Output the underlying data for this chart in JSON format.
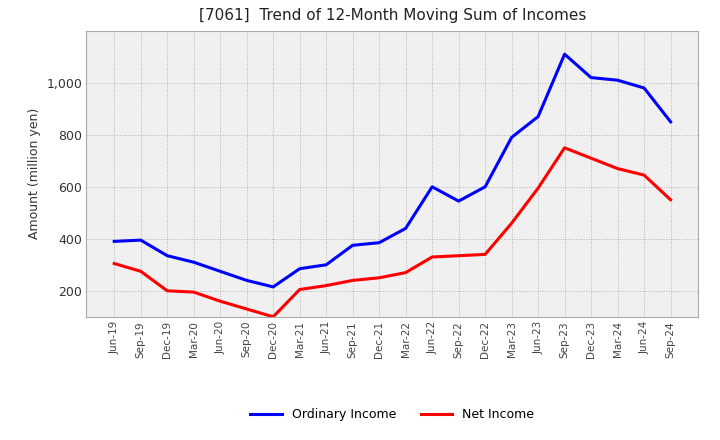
{
  "title": "[7061]  Trend of 12-Month Moving Sum of Incomes",
  "ylabel": "Amount (million yen)",
  "background_color": "#ffffff",
  "plot_bg_color": "#f0f0f0",
  "grid_color": "#aaaaaa",
  "ordinary_income_color": "#0000ff",
  "net_income_color": "#ff0000",
  "x_labels": [
    "Jun-19",
    "Sep-19",
    "Dec-19",
    "Mar-20",
    "Jun-20",
    "Sep-20",
    "Dec-20",
    "Mar-21",
    "Jun-21",
    "Sep-21",
    "Dec-21",
    "Mar-22",
    "Jun-22",
    "Sep-22",
    "Dec-22",
    "Mar-23",
    "Jun-23",
    "Sep-23",
    "Dec-23",
    "Mar-24",
    "Jun-24",
    "Sep-24"
  ],
  "ordinary_income": [
    390,
    395,
    335,
    310,
    275,
    240,
    215,
    285,
    300,
    375,
    385,
    440,
    600,
    545,
    600,
    790,
    870,
    1110,
    1020,
    1010,
    980,
    850
  ],
  "net_income": [
    305,
    275,
    200,
    195,
    160,
    130,
    100,
    205,
    220,
    240,
    250,
    270,
    330,
    335,
    340,
    460,
    595,
    750,
    710,
    670,
    645,
    550
  ],
  "ylim_min": 100,
  "ylim_max": 1200,
  "yticks": [
    200,
    400,
    600,
    800,
    1000
  ],
  "legend_labels": [
    "Ordinary Income",
    "Net Income"
  ],
  "line_width": 2.2
}
